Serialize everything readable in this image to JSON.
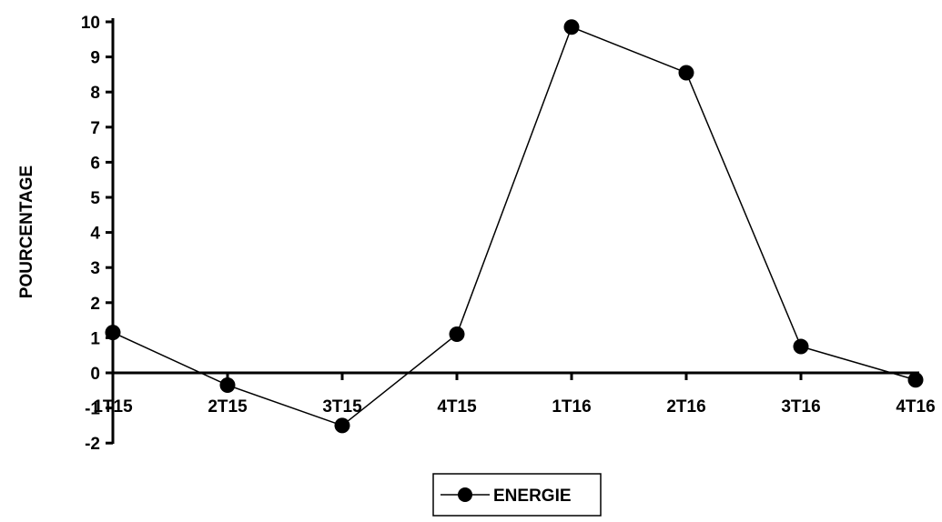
{
  "chart_data": {
    "type": "line",
    "title": "",
    "xlabel": "",
    "ylabel": "POURCENTAGE",
    "categories": [
      "1T15",
      "2T15",
      "3T15",
      "4T15",
      "1T16",
      "2T16",
      "3T16",
      "4T16"
    ],
    "yticks": [
      "-2",
      "-1",
      "0",
      "1",
      "2",
      "3",
      "4",
      "5",
      "6",
      "7",
      "8",
      "9",
      "10"
    ],
    "ylim": [
      -2,
      10
    ],
    "grid": false,
    "legend_position": "bottom",
    "series": [
      {
        "name": "ENERGIE",
        "values": [
          1.15,
          -0.35,
          -1.5,
          1.1,
          9.85,
          8.55,
          0.75,
          -0.2
        ],
        "color": "#000000",
        "marker": "circle"
      }
    ]
  }
}
